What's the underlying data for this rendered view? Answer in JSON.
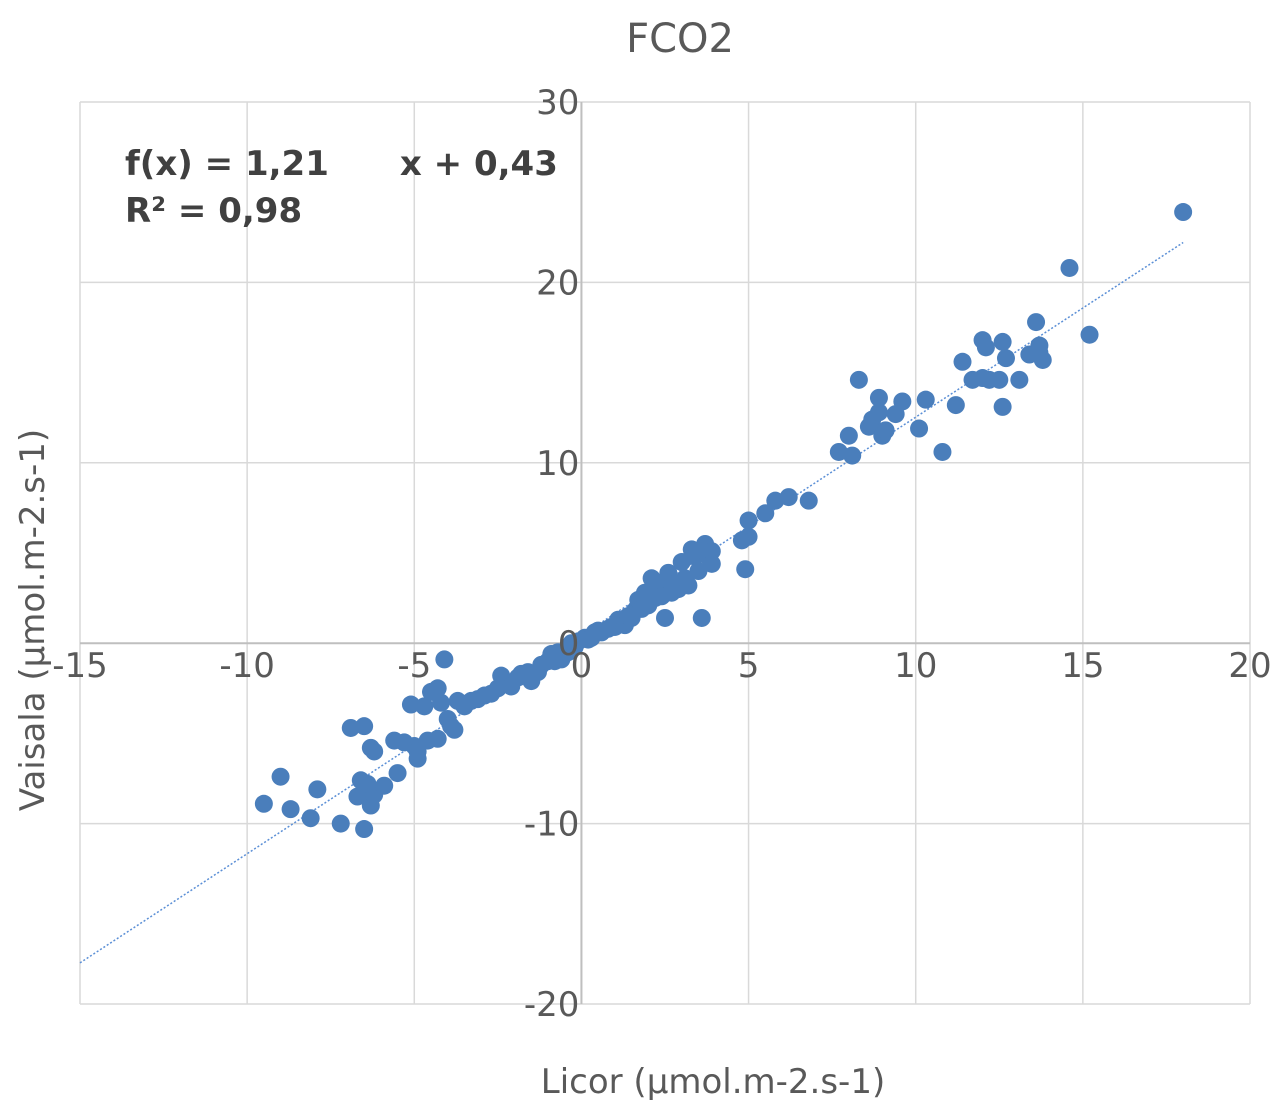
{
  "chart_data": {
    "type": "scatter",
    "title": "FCO2",
    "xlabel": "Licor (µmol.m-2.s-1)",
    "ylabel": "Vaisala (µmol.m-2.s-1)",
    "xlim": [
      -15,
      20
    ],
    "ylim": [
      -20,
      30
    ],
    "xticks": [
      -15,
      -10,
      -5,
      0,
      5,
      10,
      15,
      20
    ],
    "yticks": [
      -20,
      -10,
      0,
      10,
      20,
      30
    ],
    "xtick_labels": [
      "-15",
      "-10",
      "-5",
      "0",
      "5",
      "10",
      "15",
      "20"
    ],
    "ytick_labels": [
      "-20",
      "-10",
      "0",
      "10",
      "20",
      "30"
    ],
    "grid": true,
    "marker_color": "#4a7ebb",
    "trendline_color": "#5b8fd6",
    "trendline": {
      "slope": 1.21,
      "intercept": 0.43,
      "x_range": [
        -15,
        18
      ],
      "equation_line1": "f(x) = 1,21      x + 0,43",
      "equation_line2": "R² = 0,98"
    },
    "series": [
      {
        "points": [
          [
            -9.5,
            -8.9
          ],
          [
            -9.0,
            -7.4
          ],
          [
            -8.7,
            -9.2
          ],
          [
            -8.1,
            -9.7
          ],
          [
            -7.9,
            -8.1
          ],
          [
            -7.2,
            -10.0
          ],
          [
            -6.9,
            -4.7
          ],
          [
            -6.5,
            -4.6
          ],
          [
            -6.7,
            -8.5
          ],
          [
            -6.5,
            -10.3
          ],
          [
            -6.6,
            -7.6
          ],
          [
            -6.3,
            -5.8
          ],
          [
            -6.2,
            -6.0
          ],
          [
            -6.3,
            -9.0
          ],
          [
            -6.2,
            -8.4
          ],
          [
            -6.4,
            -7.8
          ],
          [
            -5.9,
            -7.9
          ],
          [
            -5.6,
            -5.4
          ],
          [
            -5.3,
            -5.5
          ],
          [
            -5.5,
            -7.2
          ],
          [
            -5.0,
            -5.7
          ],
          [
            -5.1,
            -3.4
          ],
          [
            -4.9,
            -6.4
          ],
          [
            -4.9,
            -6.0
          ],
          [
            -4.7,
            -3.5
          ],
          [
            -4.6,
            -5.4
          ],
          [
            -4.5,
            -2.7
          ],
          [
            -4.3,
            -5.3
          ],
          [
            -4.3,
            -2.5
          ],
          [
            -4.2,
            -3.3
          ],
          [
            -4.1,
            -0.9
          ],
          [
            -4.0,
            -4.2
          ],
          [
            -3.9,
            -4.6
          ],
          [
            -3.8,
            -4.8
          ],
          [
            -3.7,
            -3.2
          ],
          [
            -3.5,
            -3.5
          ],
          [
            -3.3,
            -3.2
          ],
          [
            -3.1,
            -3.1
          ],
          [
            -2.9,
            -2.9
          ],
          [
            -2.7,
            -2.8
          ],
          [
            -2.5,
            -2.5
          ],
          [
            -2.4,
            -1.8
          ],
          [
            -2.3,
            -2.2
          ],
          [
            -2.1,
            -2.4
          ],
          [
            -1.9,
            -1.9
          ],
          [
            -1.8,
            -1.7
          ],
          [
            -1.6,
            -1.6
          ],
          [
            -1.5,
            -2.1
          ],
          [
            -1.3,
            -1.6
          ],
          [
            -1.2,
            -1.2
          ],
          [
            -1.0,
            -1.0
          ],
          [
            -0.9,
            -0.6
          ],
          [
            -0.8,
            -1.0
          ],
          [
            -0.7,
            -0.5
          ],
          [
            -0.6,
            -0.9
          ],
          [
            -0.5,
            -0.6
          ],
          [
            -0.4,
            -0.5
          ],
          [
            -0.3,
            0.0
          ],
          [
            -0.2,
            -0.2
          ],
          [
            -0.1,
            0.1
          ],
          [
            0.1,
            0.3
          ],
          [
            0.2,
            0.2
          ],
          [
            0.3,
            0.3
          ],
          [
            0.4,
            0.6
          ],
          [
            0.5,
            0.7
          ],
          [
            0.6,
            0.6
          ],
          [
            0.8,
            0.8
          ],
          [
            0.9,
            0.9
          ],
          [
            1.0,
            0.9
          ],
          [
            1.1,
            1.3
          ],
          [
            1.2,
            1.2
          ],
          [
            1.3,
            1.0
          ],
          [
            1.4,
            1.5
          ],
          [
            1.5,
            1.4
          ],
          [
            1.6,
            1.8
          ],
          [
            1.7,
            2.4
          ],
          [
            1.8,
            1.9
          ],
          [
            1.9,
            2.8
          ],
          [
            2.0,
            2.1
          ],
          [
            2.1,
            3.6
          ],
          [
            2.2,
            2.5
          ],
          [
            2.3,
            3.3
          ],
          [
            2.4,
            2.6
          ],
          [
            2.5,
            1.4
          ],
          [
            2.6,
            3.9
          ],
          [
            2.7,
            2.8
          ],
          [
            2.8,
            3.3
          ],
          [
            2.9,
            3.0
          ],
          [
            3.0,
            4.5
          ],
          [
            3.1,
            3.6
          ],
          [
            3.2,
            3.2
          ],
          [
            3.3,
            5.2
          ],
          [
            3.4,
            4.8
          ],
          [
            3.5,
            4.0
          ],
          [
            3.6,
            1.4
          ],
          [
            3.7,
            5.5
          ],
          [
            3.8,
            4.8
          ],
          [
            3.9,
            5.1
          ],
          [
            3.9,
            4.4
          ],
          [
            4.8,
            5.7
          ],
          [
            4.9,
            4.1
          ],
          [
            5.0,
            6.8
          ],
          [
            5.0,
            5.9
          ],
          [
            5.5,
            7.2
          ],
          [
            5.8,
            7.9
          ],
          [
            6.2,
            8.1
          ],
          [
            6.8,
            7.9
          ],
          [
            7.7,
            10.6
          ],
          [
            8.0,
            11.5
          ],
          [
            8.1,
            10.4
          ],
          [
            8.3,
            14.6
          ],
          [
            8.6,
            12.0
          ],
          [
            8.7,
            12.4
          ],
          [
            8.9,
            12.8
          ],
          [
            8.9,
            13.6
          ],
          [
            9.0,
            11.5
          ],
          [
            9.1,
            11.8
          ],
          [
            9.4,
            12.7
          ],
          [
            9.6,
            13.4
          ],
          [
            10.1,
            11.9
          ],
          [
            10.3,
            13.5
          ],
          [
            10.8,
            10.6
          ],
          [
            11.2,
            13.2
          ],
          [
            11.4,
            15.6
          ],
          [
            11.7,
            14.6
          ],
          [
            12.0,
            14.7
          ],
          [
            12.0,
            16.8
          ],
          [
            12.1,
            16.4
          ],
          [
            12.2,
            14.6
          ],
          [
            12.5,
            14.6
          ],
          [
            12.6,
            16.7
          ],
          [
            12.6,
            13.1
          ],
          [
            12.7,
            15.8
          ],
          [
            13.1,
            14.6
          ],
          [
            13.4,
            16.0
          ],
          [
            13.6,
            17.8
          ],
          [
            13.7,
            16.1
          ],
          [
            13.8,
            15.7
          ],
          [
            13.7,
            16.5
          ],
          [
            14.6,
            20.8
          ],
          [
            15.2,
            17.1
          ],
          [
            18.0,
            23.9
          ]
        ]
      }
    ]
  }
}
